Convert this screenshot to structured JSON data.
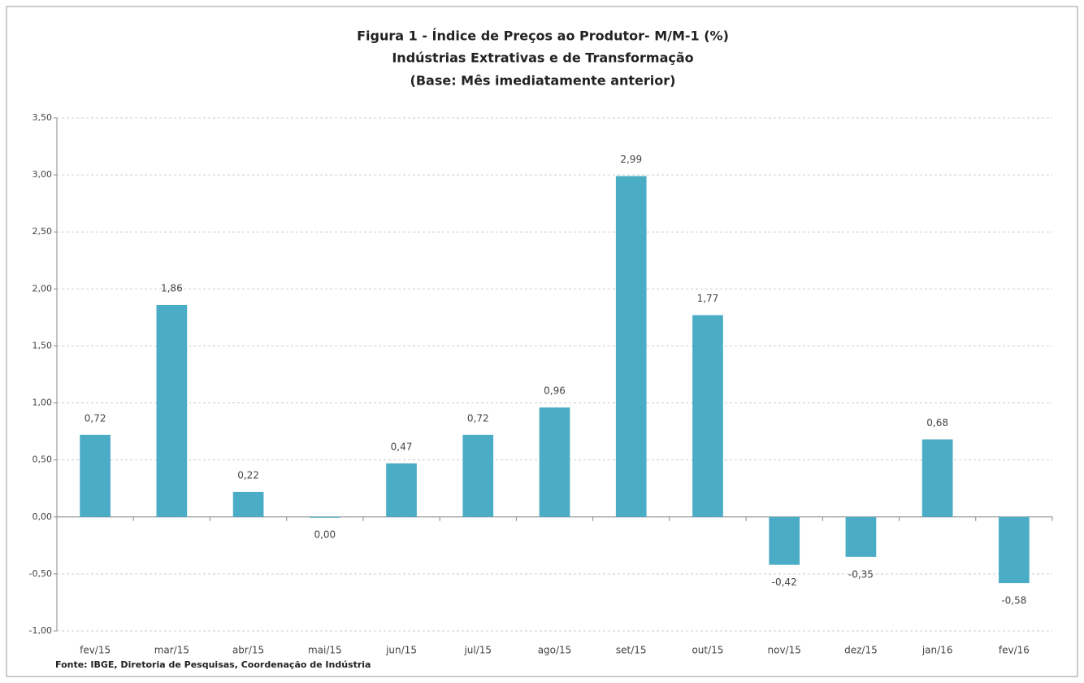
{
  "chart_data": {
    "type": "bar",
    "title": "Figura 1 - Índice de Preços ao Produtor- M/M-1 (%)",
    "subtitle": [
      "Indústrias Extrativas e de Transformação",
      "(Base: Mês imediatamente anterior)"
    ],
    "source": "Fonte: IBGE, Diretoria de Pesquisas, Coordenação de Indústria",
    "categories": [
      "fev/15",
      "mar/15",
      "abr/15",
      "mai/15",
      "jun/15",
      "jul/15",
      "ago/15",
      "set/15",
      "out/15",
      "nov/15",
      "dez/15",
      "jan/16",
      "fev/16"
    ],
    "values": [
      0.72,
      1.86,
      0.22,
      0.0,
      0.47,
      0.72,
      0.96,
      2.99,
      1.77,
      -0.42,
      -0.35,
      0.68,
      -0.58
    ],
    "value_labels": [
      "0,72",
      "1,86",
      "0,22",
      "0,00",
      "0,47",
      "0,72",
      "0,96",
      "2,99",
      "1,77",
      "-0,42",
      "-0,35",
      "0,68",
      "-0,58"
    ],
    "color": "#4bacc6",
    "ylim": [
      -1,
      3.5
    ],
    "yticks": [
      {
        "value": -1,
        "label": "-1,00"
      },
      {
        "value": -0.5,
        "label": "-0,50"
      },
      {
        "value": 0,
        "label": "0,00"
      },
      {
        "value": 0.5,
        "label": "0,50"
      },
      {
        "value": 1,
        "label": "1,00"
      },
      {
        "value": 1.5,
        "label": "1,50"
      },
      {
        "value": 2,
        "label": "2,00"
      },
      {
        "value": 2.5,
        "label": "2,50"
      },
      {
        "value": 3,
        "label": "3,00"
      },
      {
        "value": 3.5,
        "label": "3,50"
      }
    ],
    "grid": true
  }
}
